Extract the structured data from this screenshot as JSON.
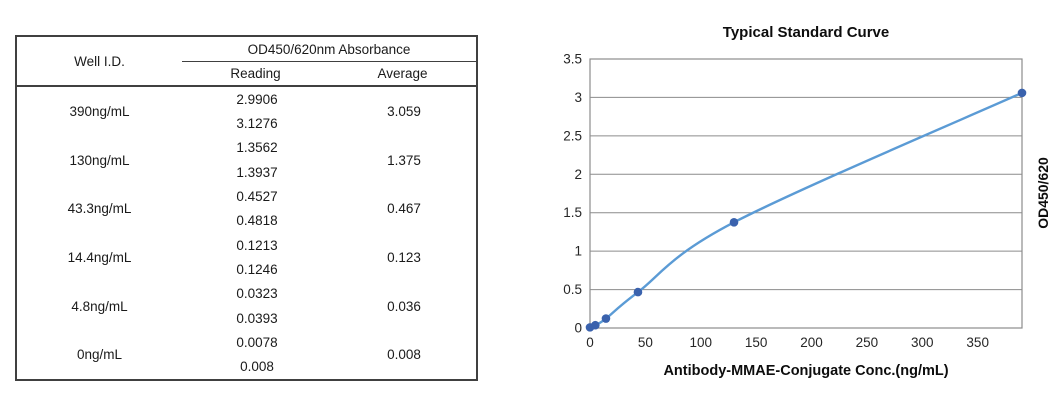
{
  "table": {
    "header": {
      "well_id": "Well I.D.",
      "absorbance_group": "OD450/620nm Absorbance",
      "reading": "Reading",
      "average": "Average"
    },
    "rows": [
      {
        "well": "390ng/mL",
        "reading1": "2.9906",
        "reading2": "3.1276",
        "average": "3.059"
      },
      {
        "well": "130ng/mL",
        "reading1": "1.3562",
        "reading2": "1.3937",
        "average": "1.375"
      },
      {
        "well": "43.3ng/mL",
        "reading1": "0.4527",
        "reading2": "0.4818",
        "average": "0.467"
      },
      {
        "well": "14.4ng/mL",
        "reading1": "0.1213",
        "reading2": "0.1246",
        "average": "0.123"
      },
      {
        "well": "4.8ng/mL",
        "reading1": "0.0323",
        "reading2": "0.0393",
        "average": "0.036"
      },
      {
        "well": "0ng/mL",
        "reading1": "0.0078",
        "reading2": "0.008",
        "average": "0.008"
      }
    ]
  },
  "chart_data": {
    "type": "line",
    "title": "Typical Standard Curve",
    "xlabel": "Antibody-MMAE-Conjugate Conc.(ng/mL)",
    "ylabel": "OD450/620",
    "x": [
      0,
      4.8,
      14.4,
      43.3,
      130,
      390
    ],
    "y": [
      0.008,
      0.036,
      0.123,
      0.467,
      1.375,
      3.059
    ],
    "xlim": [
      0,
      390
    ],
    "ylim": [
      0,
      3.5
    ],
    "x_ticks": [
      0,
      50,
      100,
      150,
      200,
      250,
      300,
      350
    ],
    "y_ticks": [
      0,
      0.5,
      1,
      1.5,
      2,
      2.5,
      3,
      3.5
    ],
    "grid": "horizontal",
    "legend": "none",
    "smooth": true,
    "line_color": "#5B9BD5",
    "marker_color": "#3A62AD",
    "grid_color": "#8C8C8C",
    "border_color": "#8C8C8C"
  }
}
